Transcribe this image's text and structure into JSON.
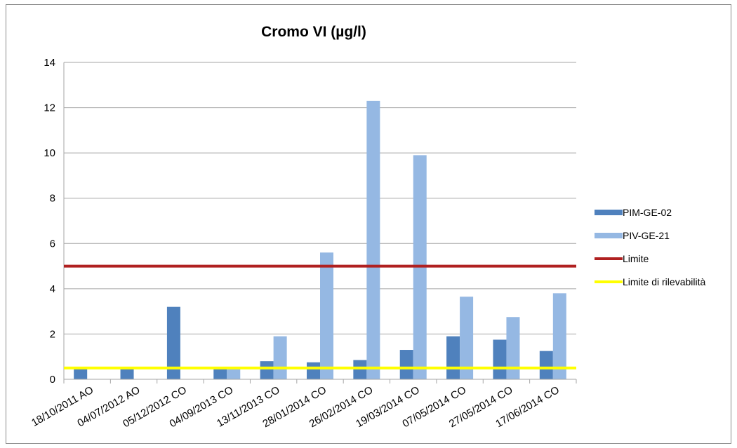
{
  "chart_data": {
    "type": "bar",
    "title": "Cromo VI (µg/l)",
    "xlabel": "",
    "ylabel": "",
    "ylim": [
      0,
      14
    ],
    "yticks": [
      0,
      2,
      4,
      6,
      8,
      10,
      12,
      14
    ],
    "grid": true,
    "legend_position": "right",
    "categories": [
      "18/10/2011 AO",
      "04/07/2012 AO",
      "05/12/2012 CO",
      "04/09/2013 CO",
      "13/11/2013 CO",
      "28/01/2014 CO",
      "26/02/2014 CO",
      "19/03/2014 CO",
      "07/05/2014 CO",
      "27/05/2014 CO",
      "17/06/2014 CO"
    ],
    "series": [
      {
        "name": "PIM-GE-02",
        "color": "#4f81bd",
        "values": [
          0.5,
          0.5,
          3.2,
          0.5,
          0.8,
          0.75,
          0.85,
          1.3,
          1.9,
          1.75,
          1.25
        ]
      },
      {
        "name": "PIV-GE-21",
        "color": "#95b8e3",
        "values": [
          null,
          null,
          null,
          0.5,
          1.9,
          5.6,
          12.3,
          9.9,
          3.65,
          2.75,
          3.8
        ]
      }
    ],
    "reference_lines": [
      {
        "name": "Limite",
        "value": 5,
        "color": "#b02020"
      },
      {
        "name": "Limite di rilevabilità",
        "value": 0.5,
        "color": "#ffff00"
      }
    ]
  }
}
